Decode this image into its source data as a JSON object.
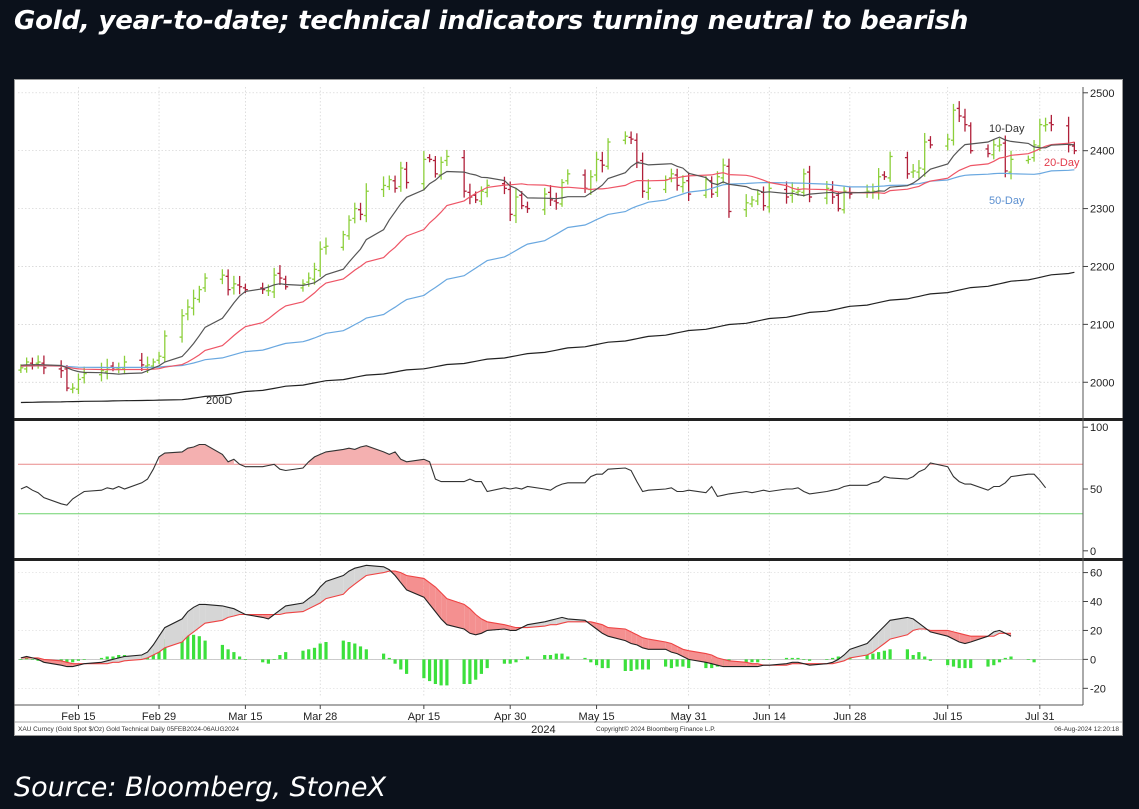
{
  "header": {
    "title": "Gold, year-to-date; technical indicators turning neutral to bearish"
  },
  "footer": {
    "source": "Source: Bloomberg, StoneX"
  },
  "chart_data": {
    "type": "line",
    "subtype": "price-ohlc-with-moving-averages-rsi-macd",
    "footer_left": "XAU Curncy (Gold Spot $/Oz) Gold Technical Daily 05FEB2024-06AUG2024",
    "footer_center": "Copyright© 2024 Bloomberg Finance L.P.",
    "footer_right": "06-Aug-2024 12:20:18",
    "x_tick_labels": [
      "Feb 15",
      "Feb 29",
      "Mar 15",
      "Mar 28",
      "Apr 15",
      "Apr 30",
      "May 15",
      "May 31",
      "Jun 14",
      "Jun 28",
      "Jul 15",
      "Jul 31"
    ],
    "x_year_label": "2024",
    "x_range": [
      "2024-02-05",
      "2024-08-06"
    ],
    "price_panel": {
      "ylim": [
        1940,
        2510
      ],
      "yticks": [
        2000,
        2100,
        2200,
        2300,
        2400,
        2500
      ],
      "grid": true,
      "ma_labels": {
        "ma10": "10-Day",
        "ma20": "20-Day",
        "ma50": "50-Day",
        "ma200": "200D"
      },
      "ma_colors": {
        "ma10": "#555555",
        "ma20": "#ee5566",
        "ma50": "#6aa8e0",
        "ma200": "#222222"
      },
      "up_color": "#8ccf3a",
      "down_color": "#b0203a",
      "close": [
        [
          "2024-02-05",
          2025
        ],
        [
          "2024-02-06",
          2035
        ],
        [
          "2024-02-07",
          2030
        ],
        [
          "2024-02-08",
          2035
        ],
        [
          "2024-02-09",
          2025
        ],
        [
          "2024-02-12",
          2020
        ],
        [
          "2024-02-13",
          1990
        ],
        [
          "2024-02-14",
          1990
        ],
        [
          "2024-02-15",
          2005
        ],
        [
          "2024-02-16",
          2015
        ],
        [
          "2024-02-19",
          2020
        ],
        [
          "2024-02-20",
          2025
        ],
        [
          "2024-02-21",
          2025
        ],
        [
          "2024-02-22",
          2025
        ],
        [
          "2024-02-23",
          2035
        ],
        [
          "2024-02-26",
          2030
        ],
        [
          "2024-02-27",
          2030
        ],
        [
          "2024-02-28",
          2035
        ],
        [
          "2024-02-29",
          2045
        ],
        [
          "2024-03-01",
          2080
        ],
        [
          "2024-03-04",
          2115
        ],
        [
          "2024-03-05",
          2130
        ],
        [
          "2024-03-06",
          2145
        ],
        [
          "2024-03-07",
          2160
        ],
        [
          "2024-03-08",
          2180
        ],
        [
          "2024-03-11",
          2185
        ],
        [
          "2024-03-12",
          2160
        ],
        [
          "2024-03-13",
          2170
        ],
        [
          "2024-03-14",
          2165
        ],
        [
          "2024-03-15",
          2160
        ],
        [
          "2024-03-18",
          2160
        ],
        [
          "2024-03-19",
          2158
        ],
        [
          "2024-03-20",
          2185
        ],
        [
          "2024-03-21",
          2180
        ],
        [
          "2024-03-22",
          2165
        ],
        [
          "2024-03-25",
          2170
        ],
        [
          "2024-03-26",
          2180
        ],
        [
          "2024-03-27",
          2195
        ],
        [
          "2024-03-28",
          2230
        ],
        [
          "2024-03-29",
          2235
        ],
        [
          "2024-04-01",
          2255
        ],
        [
          "2024-04-02",
          2280
        ],
        [
          "2024-04-03",
          2300
        ],
        [
          "2024-04-04",
          2290
        ],
        [
          "2024-04-05",
          2330
        ],
        [
          "2024-04-08",
          2340
        ],
        [
          "2024-04-09",
          2350
        ],
        [
          "2024-04-10",
          2335
        ],
        [
          "2024-04-11",
          2370
        ],
        [
          "2024-04-12",
          2345
        ],
        [
          "2024-04-15",
          2385
        ],
        [
          "2024-04-16",
          2385
        ],
        [
          "2024-04-17",
          2360
        ],
        [
          "2024-04-18",
          2380
        ],
        [
          "2024-04-19",
          2390
        ],
        [
          "2024-04-22",
          2330
        ],
        [
          "2024-04-23",
          2320
        ],
        [
          "2024-04-24",
          2315
        ],
        [
          "2024-04-25",
          2330
        ],
        [
          "2024-04-26",
          2340
        ],
        [
          "2024-04-29",
          2335
        ],
        [
          "2024-04-30",
          2290
        ],
        [
          "2024-05-01",
          2320
        ],
        [
          "2024-05-02",
          2305
        ],
        [
          "2024-05-03",
          2300
        ],
        [
          "2024-05-06",
          2325
        ],
        [
          "2024-05-07",
          2315
        ],
        [
          "2024-05-08",
          2310
        ],
        [
          "2024-05-09",
          2345
        ],
        [
          "2024-05-10",
          2360
        ],
        [
          "2024-05-13",
          2335
        ],
        [
          "2024-05-14",
          2355
        ],
        [
          "2024-05-15",
          2385
        ],
        [
          "2024-05-16",
          2375
        ],
        [
          "2024-05-17",
          2415
        ],
        [
          "2024-05-20",
          2425
        ],
        [
          "2024-05-21",
          2420
        ],
        [
          "2024-05-22",
          2380
        ],
        [
          "2024-05-23",
          2330
        ],
        [
          "2024-05-24",
          2335
        ],
        [
          "2024-05-27",
          2350
        ],
        [
          "2024-05-28",
          2360
        ],
        [
          "2024-05-29",
          2340
        ],
        [
          "2024-05-30",
          2345
        ],
        [
          "2024-05-31",
          2325
        ],
        [
          "2024-06-03",
          2350
        ],
        [
          "2024-06-04",
          2325
        ],
        [
          "2024-06-05",
          2355
        ],
        [
          "2024-06-06",
          2375
        ],
        [
          "2024-06-07",
          2295
        ],
        [
          "2024-06-10",
          2310
        ],
        [
          "2024-06-11",
          2315
        ],
        [
          "2024-06-12",
          2325
        ],
        [
          "2024-06-13",
          2305
        ],
        [
          "2024-06-14",
          2335
        ],
        [
          "2024-06-17",
          2320
        ],
        [
          "2024-06-18",
          2330
        ],
        [
          "2024-06-19",
          2330
        ],
        [
          "2024-06-20",
          2360
        ],
        [
          "2024-06-21",
          2320
        ],
        [
          "2024-06-24",
          2335
        ],
        [
          "2024-06-25",
          2320
        ],
        [
          "2024-06-26",
          2300
        ],
        [
          "2024-06-27",
          2330
        ],
        [
          "2024-06-28",
          2325
        ],
        [
          "2024-07-01",
          2330
        ],
        [
          "2024-07-02",
          2330
        ],
        [
          "2024-07-03",
          2355
        ],
        [
          "2024-07-04",
          2355
        ],
        [
          "2024-07-05",
          2390
        ],
        [
          "2024-07-08",
          2360
        ],
        [
          "2024-07-09",
          2365
        ],
        [
          "2024-07-10",
          2370
        ],
        [
          "2024-07-11",
          2415
        ],
        [
          "2024-07-12",
          2410
        ],
        [
          "2024-07-15",
          2420
        ],
        [
          "2024-07-16",
          2470
        ],
        [
          "2024-07-17",
          2460
        ],
        [
          "2024-07-18",
          2445
        ],
        [
          "2024-07-19",
          2400
        ],
        [
          "2024-07-22",
          2395
        ],
        [
          "2024-07-23",
          2410
        ],
        [
          "2024-07-24",
          2410
        ],
        [
          "2024-07-25",
          2365
        ],
        [
          "2024-07-26",
          2385
        ],
        [
          "2024-07-29",
          2385
        ],
        [
          "2024-07-30",
          2410
        ],
        [
          "2024-07-31",
          2445
        ],
        [
          "2024-08-01",
          2445
        ],
        [
          "2024-08-02",
          2445
        ],
        [
          "2024-08-05",
          2410
        ],
        [
          "2024-08-06",
          2400
        ]
      ],
      "ma50_start": [
        [
          "2024-02-05",
          2030
        ],
        [
          "2024-02-29",
          2030
        ]
      ],
      "ma200_start": [
        [
          "2024-02-05",
          1965
        ],
        [
          "2024-03-15",
          1975
        ]
      ]
    },
    "rsi_panel": {
      "ylim": [
        -5,
        105
      ],
      "yticks": [
        0,
        50,
        100
      ],
      "overbought": 70,
      "oversold": 30,
      "overbought_color": "#e98a8a",
      "oversold_color": "#6fd46f",
      "fill_color": "#f4b0b0",
      "values": [
        50,
        52,
        49,
        47,
        43,
        38,
        37,
        42,
        45,
        48,
        49,
        51,
        50,
        52,
        50,
        55,
        58,
        66,
        76,
        79,
        80,
        83,
        84,
        86,
        86,
        78,
        72,
        74,
        70,
        68,
        68,
        69,
        70,
        66,
        65,
        67,
        72,
        76,
        78,
        80,
        82,
        83,
        82,
        84,
        85,
        80,
        78,
        80,
        74,
        72,
        74,
        72,
        58,
        56,
        56,
        56,
        58,
        56,
        56,
        48,
        51,
        50,
        51,
        50,
        52,
        50,
        49,
        52,
        54,
        55,
        55,
        60,
        62,
        62,
        66,
        67,
        65,
        56,
        48,
        49,
        50,
        51,
        48,
        48,
        49,
        47,
        52,
        44,
        45,
        46,
        48,
        47,
        48,
        49,
        48,
        50,
        50,
        51,
        48,
        46,
        48,
        49,
        50,
        52,
        53,
        53,
        55,
        56,
        60,
        59,
        58,
        60,
        64,
        66,
        71,
        68,
        60,
        56,
        54,
        54,
        49,
        52,
        52,
        55,
        60,
        62,
        62,
        57,
        51
      ]
    },
    "macd_panel": {
      "ylim": [
        -26,
        68
      ],
      "yticks": [
        -20,
        0,
        20,
        40,
        60
      ],
      "macd_color": "#222222",
      "signal_color": "#ee4444",
      "hist_color": "#3ce03c",
      "fill_bull_color": "#d6d6d6",
      "fill_bear_color": "#f49090",
      "macd": [
        1,
        2,
        1,
        0,
        -2,
        -4,
        -5,
        -5,
        -4,
        -3,
        -2,
        -1,
        0,
        1,
        2,
        3,
        5,
        10,
        16,
        22,
        28,
        33,
        36,
        38,
        38,
        37,
        36,
        35,
        33,
        31,
        29,
        28,
        31,
        34,
        37,
        39,
        42,
        45,
        50,
        54,
        58,
        61,
        63,
        64,
        65,
        64,
        62,
        58,
        53,
        48,
        43,
        38,
        33,
        28,
        24,
        21,
        18,
        17,
        18,
        20,
        21,
        20,
        20,
        22,
        24,
        26,
        27,
        28,
        29,
        28,
        27,
        24,
        21,
        18,
        16,
        13,
        11,
        10,
        8,
        7,
        7,
        5,
        4,
        2,
        0,
        -2,
        -3,
        -4,
        -5,
        -5,
        -5,
        -5,
        -5,
        -4,
        -4,
        -3,
        -2,
        -2,
        -3,
        -4,
        -3,
        -2,
        0,
        3,
        7,
        11,
        15,
        19,
        23,
        27,
        29,
        28,
        25,
        22,
        19,
        16,
        14,
        12,
        11,
        12,
        16,
        19,
        20,
        18,
        16
      ],
      "signal": [
        1,
        1,
        1,
        1,
        0,
        -1,
        -2,
        -3,
        -3,
        -3,
        -3,
        -3,
        -2,
        -2,
        -1,
        0,
        1,
        3,
        5,
        8,
        12,
        16,
        19,
        22,
        25,
        27,
        29,
        30,
        31,
        31,
        31,
        31,
        31,
        31,
        32,
        33,
        35,
        37,
        39,
        42,
        45,
        49,
        52,
        55,
        58,
        60,
        61,
        61,
        60,
        58,
        56,
        53,
        50,
        46,
        42,
        38,
        35,
        31,
        28,
        26,
        24,
        23,
        22,
        22,
        22,
        23,
        24,
        24,
        25,
        26,
        26,
        26,
        25,
        24,
        22,
        21,
        19,
        17,
        15,
        14,
        12,
        11,
        9,
        7,
        6,
        4,
        3,
        1,
        0,
        -1,
        -2,
        -3,
        -3,
        -4,
        -4,
        -4,
        -3,
        -3,
        -3,
        -3,
        -3,
        -3,
        -2,
        -1,
        1,
        3,
        5,
        8,
        11,
        14,
        17,
        20,
        21,
        21,
        20,
        20,
        19,
        18,
        17,
        16,
        16,
        16,
        18,
        18,
        18
      ],
      "histogram": [
        0,
        1,
        0,
        -1,
        -2,
        -3,
        -3,
        -2,
        -1,
        0,
        1,
        2,
        2,
        3,
        3,
        3,
        4,
        7,
        11,
        14,
        16,
        17,
        17,
        16,
        13,
        10,
        7,
        5,
        2,
        0,
        -2,
        -3,
        0,
        3,
        5,
        6,
        7,
        8,
        11,
        12,
        13,
        12,
        11,
        9,
        7,
        4,
        1,
        -3,
        -7,
        -10,
        -13,
        -15,
        -17,
        -18,
        -18,
        -17,
        -17,
        -14,
        -10,
        -6,
        -3,
        -3,
        -2,
        0,
        2,
        3,
        3,
        4,
        4,
        2,
        1,
        -2,
        -4,
        -6,
        -6,
        -8,
        -8,
        -7,
        -7,
        -7,
        -5,
        -6,
        -5,
        -5,
        -6,
        -6,
        -6,
        -5,
        -5,
        -4,
        -3,
        -2,
        -2,
        0,
        0,
        1,
        1,
        1,
        0,
        -1,
        0,
        1,
        2,
        2,
        2,
        3,
        4,
        5,
        6,
        7,
        7,
        3,
        5,
        2,
        -1,
        -4,
        -5,
        -6,
        -6,
        -6,
        -5,
        -4,
        -2,
        1,
        2,
        0,
        -2
      ]
    }
  }
}
